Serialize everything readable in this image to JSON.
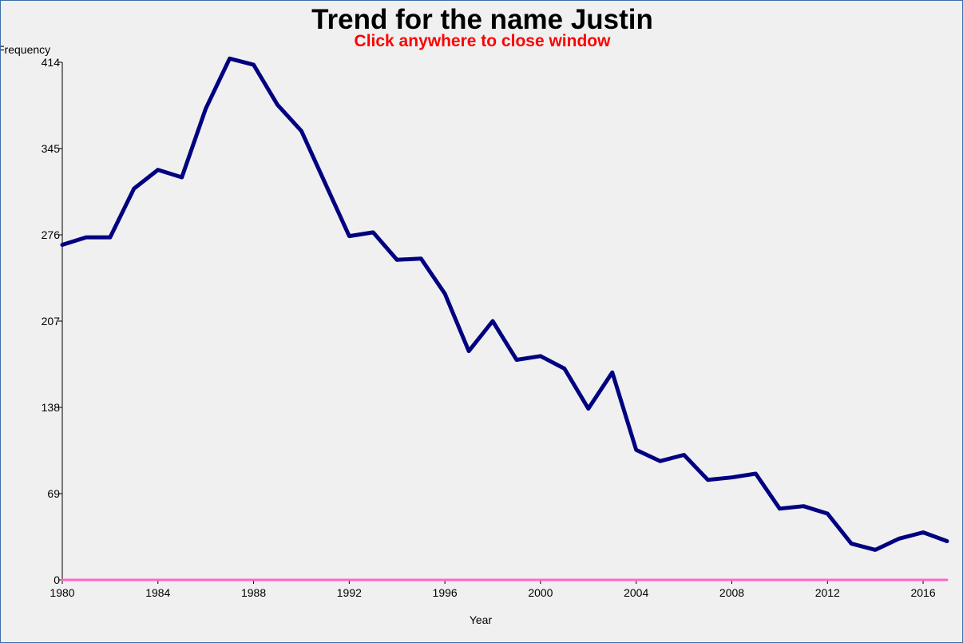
{
  "window": {
    "title": "Trend for the name Justin",
    "close_hint": "Click anywhere to close window",
    "close_hint_color": "#ff0000"
  },
  "chart_data": {
    "type": "line",
    "title": "Trend for the name Justin",
    "xlabel": "Year",
    "ylabel": "Frequency",
    "xlim": [
      1980,
      2017
    ],
    "ylim": [
      0,
      414
    ],
    "x_ticks": [
      1980,
      1984,
      1988,
      1992,
      1996,
      2000,
      2004,
      2008,
      2012,
      2016
    ],
    "y_ticks": [
      0,
      69,
      138,
      207,
      276,
      345,
      414
    ],
    "grid": false,
    "series": [
      {
        "color": "#000080",
        "x": [
          1980,
          1981,
          1982,
          1983,
          1984,
          1985,
          1986,
          1987,
          1988,
          1989,
          1990,
          1991,
          1992,
          1993,
          1994,
          1995,
          1996,
          1997,
          1998,
          1999,
          2000,
          2001,
          2002,
          2003,
          2004,
          2005,
          2006,
          2007,
          2008,
          2009,
          2010,
          2011,
          2012,
          2013,
          2014,
          2015,
          2016,
          2017
        ],
        "values": [
          268,
          274,
          274,
          313,
          328,
          322,
          377,
          417,
          412,
          380,
          359,
          317,
          275,
          278,
          256,
          257,
          229,
          183,
          207,
          176,
          179,
          169,
          137,
          166,
          104,
          95,
          100,
          80,
          82,
          85,
          57,
          59,
          53,
          29,
          24,
          33,
          38,
          31
        ]
      },
      {
        "color": "#ff66cc",
        "x": [
          1980,
          1981,
          1982,
          1983,
          1984,
          1985,
          1986,
          1987,
          1988,
          1989,
          1990,
          1991,
          1992,
          1993,
          1994,
          1995,
          1996,
          1997,
          1998,
          1999,
          2000,
          2001,
          2002,
          2003,
          2004,
          2005,
          2006,
          2007,
          2008,
          2009,
          2010,
          2011,
          2012,
          2013,
          2014,
          2015,
          2016,
          2017
        ],
        "values": [
          0,
          0,
          0,
          0,
          0,
          0,
          0,
          0,
          0,
          0,
          0,
          0,
          0,
          0,
          0,
          0,
          0,
          0,
          0,
          0,
          0,
          0,
          0,
          0,
          0,
          0,
          0,
          0,
          0,
          0,
          0,
          0,
          0,
          0,
          0,
          0,
          0,
          0
        ]
      }
    ]
  }
}
